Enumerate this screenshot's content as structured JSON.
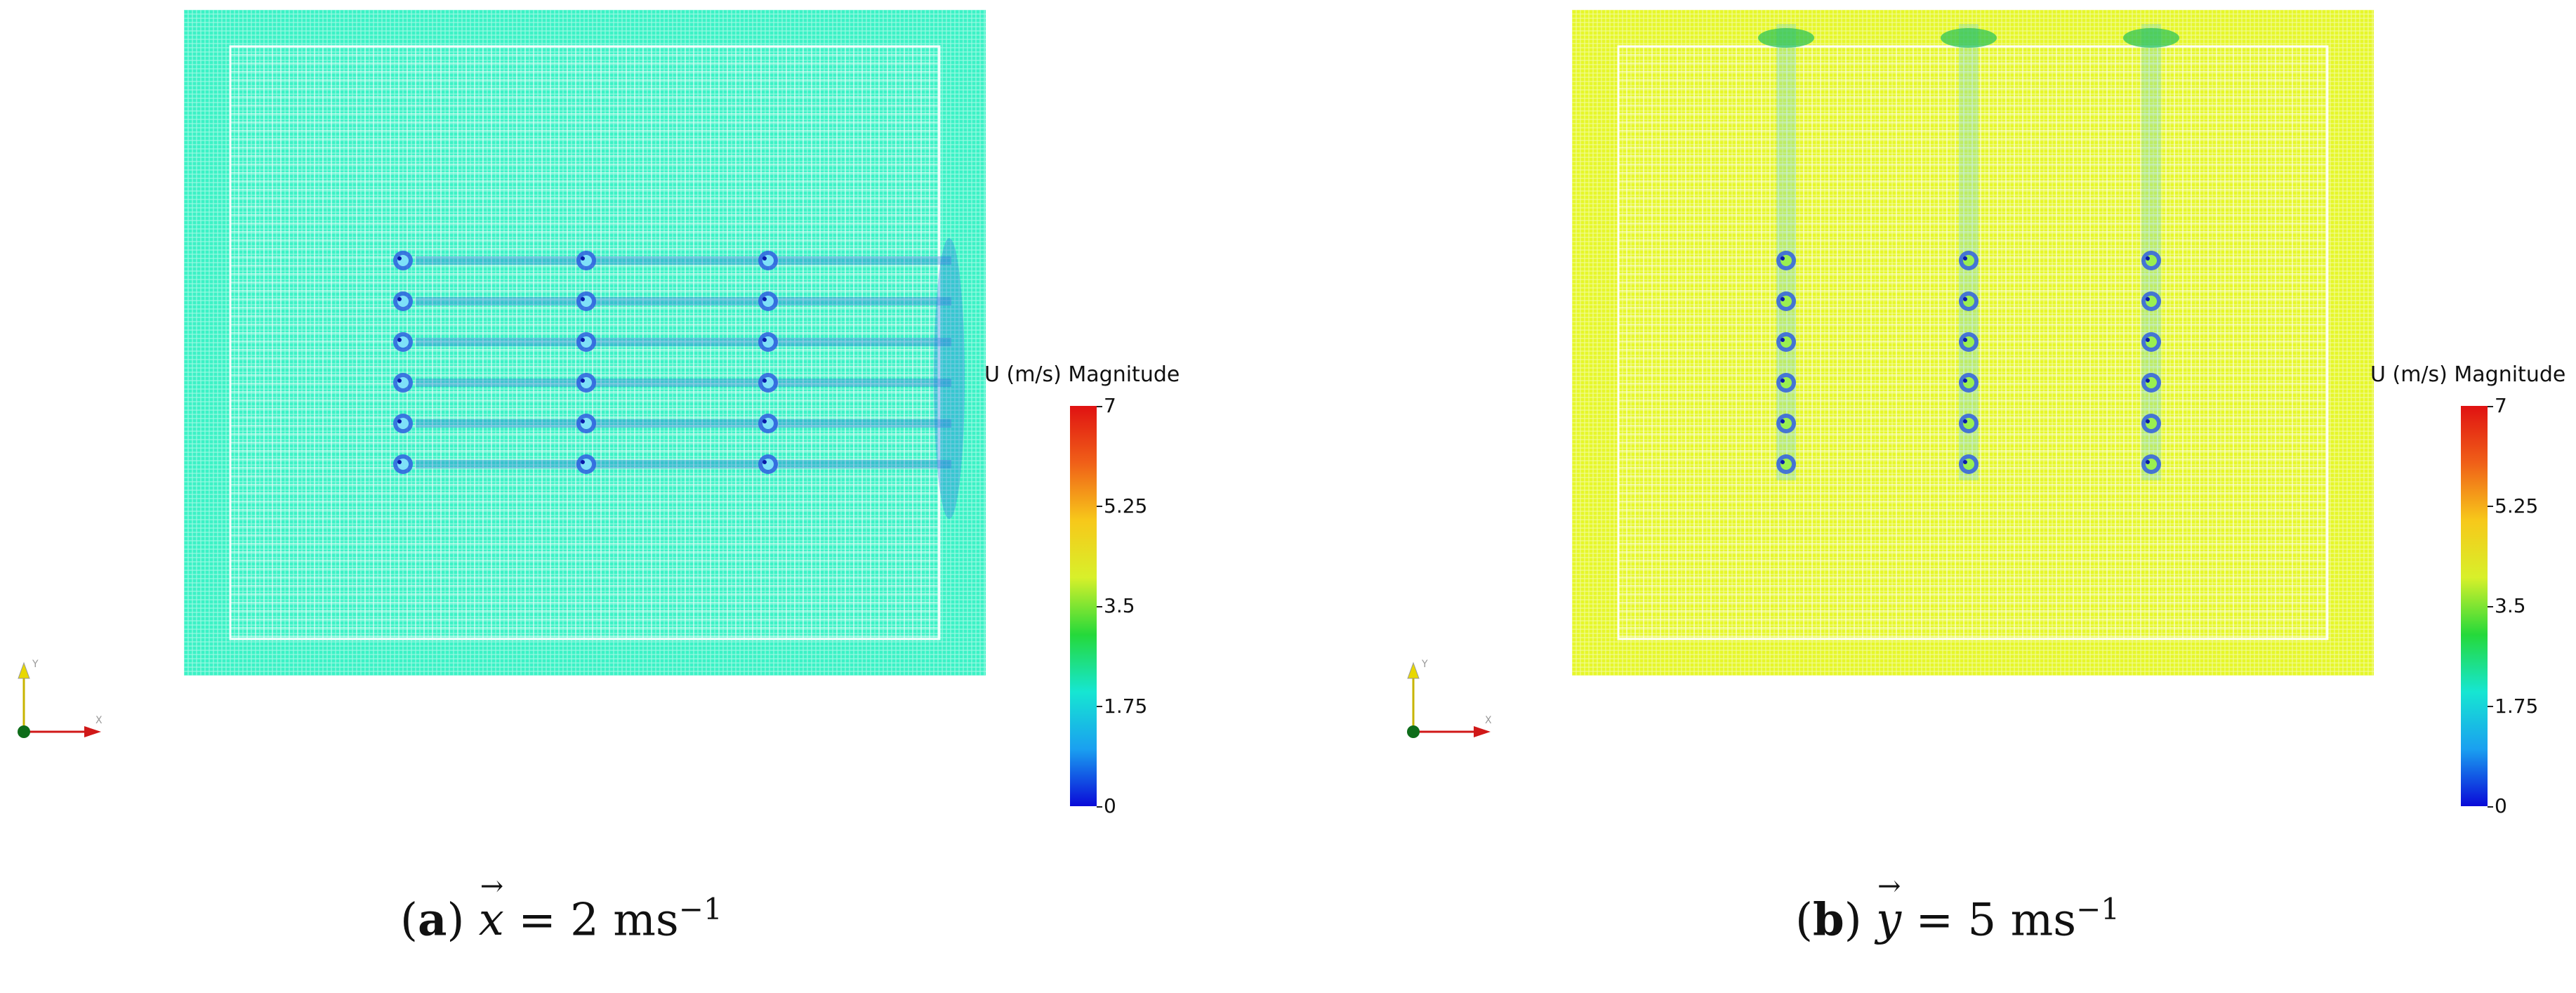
{
  "colors": {
    "panel_a_background": "#3cf2c6",
    "panel_b_background": "#e6f72a",
    "mesh_line": "#ffffff",
    "colorbar_stops": [
      "#0a0ad8",
      "#1aa0f0",
      "#16e6d2",
      "#25d93a",
      "#d8f02a",
      "#f7c81a",
      "#f06018",
      "#e01212"
    ]
  },
  "legend": {
    "title": "U (m/s) Magnitude",
    "ticks": [
      "7",
      "5.25",
      "3.5",
      "1.75",
      "0"
    ],
    "range": [
      0,
      7
    ]
  },
  "panels": [
    {
      "id": "a",
      "caption_label": "a",
      "caption_var": "x",
      "caption_rest": " = 2 ms",
      "caption_exp": "−1",
      "flow_direction": "x",
      "obstacle_columns": 3,
      "obstacle_rows": 6
    },
    {
      "id": "b",
      "caption_label": "b",
      "caption_var": "y",
      "caption_rest": " = 5 ms",
      "caption_exp": "−1",
      "flow_direction": "y",
      "obstacle_columns": 3,
      "obstacle_rows": 6
    }
  ],
  "icons": {
    "axes": "orientation-axes-icon"
  }
}
